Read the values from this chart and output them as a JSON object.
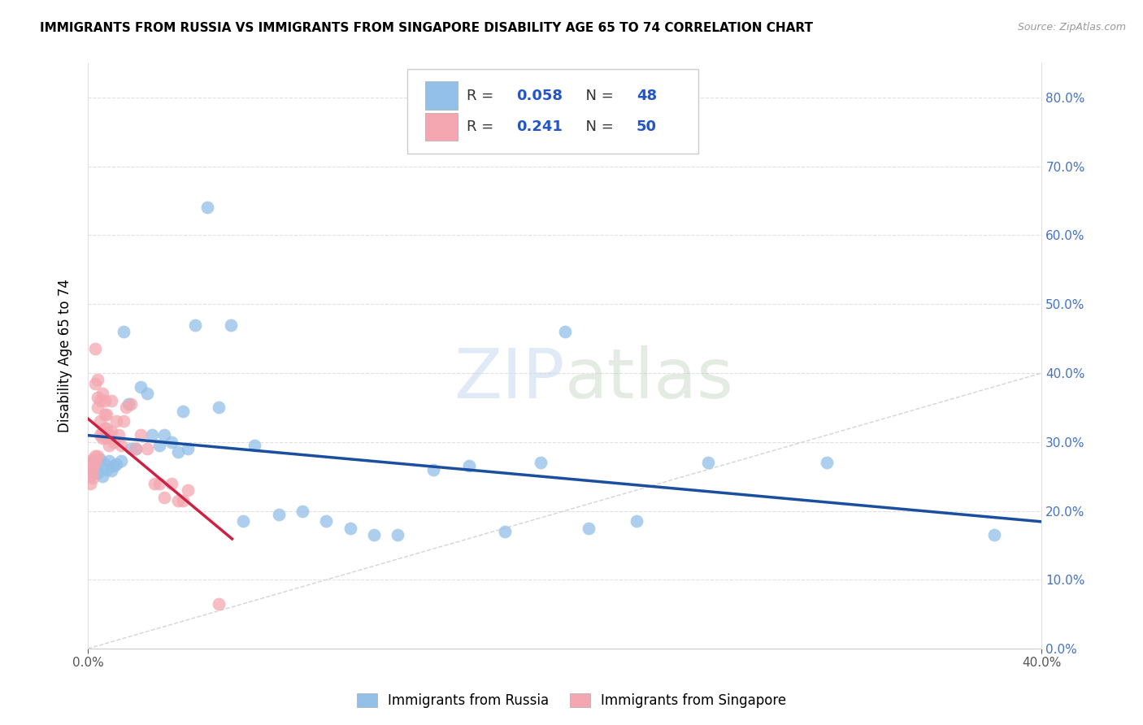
{
  "title": "IMMIGRANTS FROM RUSSIA VS IMMIGRANTS FROM SINGAPORE DISABILITY AGE 65 TO 74 CORRELATION CHART",
  "source": "Source: ZipAtlas.com",
  "ylabel": "Disability Age 65 to 74",
  "legend_label_blue": "Immigrants from Russia",
  "legend_label_pink": "Immigrants from Singapore",
  "R_blue": 0.058,
  "N_blue": 48,
  "R_pink": 0.241,
  "N_pink": 50,
  "xlim": [
    0.0,
    0.4
  ],
  "ylim": [
    0.0,
    0.85
  ],
  "x_ticks": [
    0.0,
    0.4
  ],
  "y_ticks": [
    0.0,
    0.1,
    0.2,
    0.3,
    0.4,
    0.5,
    0.6,
    0.7,
    0.8
  ],
  "blue_color": "#92c0e8",
  "pink_color": "#f4a7b0",
  "regression_blue_color": "#1a4fa0",
  "regression_pink_color": "#cc2244",
  "watermark_zip": "ZIP",
  "watermark_atlas": "atlas",
  "blue_scatter_x": [
    0.001,
    0.002,
    0.003,
    0.004,
    0.005,
    0.006,
    0.007,
    0.008,
    0.009,
    0.01,
    0.011,
    0.012,
    0.014,
    0.015,
    0.017,
    0.018,
    0.02,
    0.022,
    0.025,
    0.027,
    0.03,
    0.032,
    0.035,
    0.038,
    0.04,
    0.042,
    0.045,
    0.05,
    0.055,
    0.06,
    0.065,
    0.07,
    0.08,
    0.09,
    0.1,
    0.11,
    0.12,
    0.13,
    0.145,
    0.16,
    0.175,
    0.19,
    0.2,
    0.21,
    0.23,
    0.26,
    0.31,
    0.38
  ],
  "blue_scatter_y": [
    0.27,
    0.26,
    0.265,
    0.255,
    0.275,
    0.25,
    0.268,
    0.26,
    0.272,
    0.258,
    0.265,
    0.268,
    0.272,
    0.46,
    0.355,
    0.29,
    0.29,
    0.38,
    0.37,
    0.31,
    0.295,
    0.31,
    0.3,
    0.285,
    0.345,
    0.29,
    0.47,
    0.64,
    0.35,
    0.47,
    0.185,
    0.295,
    0.195,
    0.2,
    0.185,
    0.175,
    0.165,
    0.165,
    0.26,
    0.265,
    0.17,
    0.27,
    0.46,
    0.175,
    0.185,
    0.27,
    0.27,
    0.165
  ],
  "pink_scatter_x": [
    0.001,
    0.001,
    0.001,
    0.001,
    0.002,
    0.002,
    0.002,
    0.002,
    0.003,
    0.003,
    0.003,
    0.003,
    0.004,
    0.004,
    0.004,
    0.004,
    0.005,
    0.005,
    0.005,
    0.006,
    0.006,
    0.006,
    0.007,
    0.007,
    0.007,
    0.008,
    0.008,
    0.008,
    0.009,
    0.009,
    0.01,
    0.01,
    0.011,
    0.012,
    0.013,
    0.014,
    0.015,
    0.016,
    0.018,
    0.02,
    0.022,
    0.025,
    0.028,
    0.03,
    0.032,
    0.035,
    0.038,
    0.04,
    0.042,
    0.055
  ],
  "pink_scatter_y": [
    0.27,
    0.26,
    0.25,
    0.24,
    0.275,
    0.265,
    0.258,
    0.248,
    0.28,
    0.27,
    0.385,
    0.435,
    0.28,
    0.35,
    0.365,
    0.39,
    0.31,
    0.33,
    0.36,
    0.305,
    0.315,
    0.37,
    0.32,
    0.34,
    0.36,
    0.305,
    0.32,
    0.34,
    0.295,
    0.31,
    0.315,
    0.36,
    0.3,
    0.33,
    0.31,
    0.295,
    0.33,
    0.35,
    0.355,
    0.29,
    0.31,
    0.29,
    0.24,
    0.24,
    0.22,
    0.24,
    0.215,
    0.215,
    0.23,
    0.065
  ]
}
